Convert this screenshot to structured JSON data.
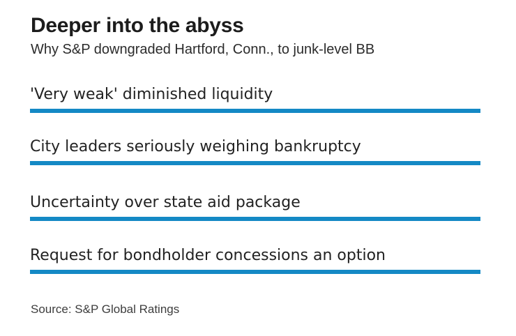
{
  "chart_data": {
    "type": "table",
    "title": "Deeper into the abyss",
    "subtitle": "Why S&P downgraded Hartford, Conn., to junk-level BB",
    "rows": [
      "'Very weak' diminished liquidity",
      "City leaders seriously weighing bankruptcy",
      "Uncertainty over state aid package",
      "Request for bondholder concessions an option"
    ],
    "source": "Source: S&P Global Ratings",
    "layout": {
      "underline_color": "#1489c5",
      "background": "#ffffff",
      "grid": "off",
      "legend": "none"
    }
  }
}
